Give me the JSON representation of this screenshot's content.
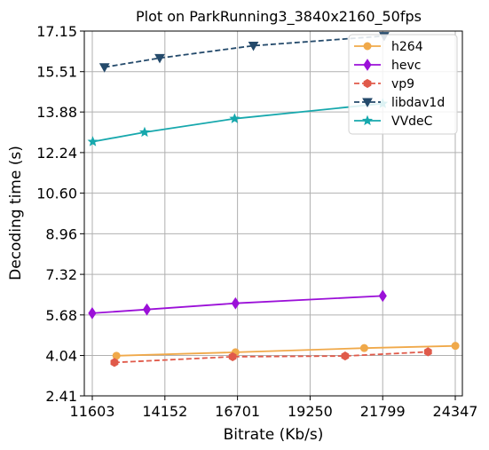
{
  "chart_data": {
    "type": "line",
    "title": "Plot on ParkRunning3_3840x2160_50fps",
    "xlabel": "Bitrate (Kb/s)",
    "ylabel": "Decoding time (s)",
    "xlim": [
      11603,
      24347
    ],
    "ylim": [
      2.41,
      17.15
    ],
    "xticks": [
      11603,
      14152,
      16701,
      19250,
      21799,
      24347
    ],
    "xtick_labels": [
      "11603",
      "14152",
      "16701",
      "19250",
      "21799",
      "24347"
    ],
    "yticks": [
      2.41,
      4.04,
      5.68,
      7.32,
      8.96,
      10.6,
      12.24,
      13.88,
      15.51,
      17.15
    ],
    "ytick_labels": [
      "2.41",
      "4.04",
      "5.68",
      "7.32",
      "8.96",
      "10.60",
      "12.24",
      "13.88",
      "15.51",
      "17.15"
    ],
    "grid": true,
    "legend_position": "top-right",
    "series": [
      {
        "name": "h264",
        "color": "#f0a94a",
        "marker": "circle",
        "dashed": false,
        "x": [
          12450,
          16630,
          21150,
          24350
        ],
        "y": [
          4.03,
          4.17,
          4.34,
          4.43
        ]
      },
      {
        "name": "hevc",
        "color": "#9b10d8",
        "marker": "diamond",
        "dashed": false,
        "x": [
          11600,
          13520,
          16630,
          21800
        ],
        "y": [
          5.75,
          5.9,
          6.15,
          6.45
        ]
      },
      {
        "name": "vp9",
        "color": "#e05a4a",
        "marker": "hexagon",
        "dashed": true,
        "x": [
          12380,
          16530,
          20480,
          23390
        ],
        "y": [
          3.76,
          3.99,
          4.02,
          4.19
        ]
      },
      {
        "name": "libdav1d",
        "color": "#244a6b",
        "marker": "triangle-down",
        "dashed": true,
        "x": [
          12030,
          13970,
          17260,
          21850
        ],
        "y": [
          15.69,
          16.06,
          16.56,
          16.95
        ]
      },
      {
        "name": "VVdeC",
        "color": "#17a8ad",
        "marker": "star",
        "dashed": false,
        "x": [
          11620,
          13440,
          16600,
          21800
        ],
        "y": [
          12.68,
          13.06,
          13.61,
          14.22
        ]
      }
    ]
  }
}
